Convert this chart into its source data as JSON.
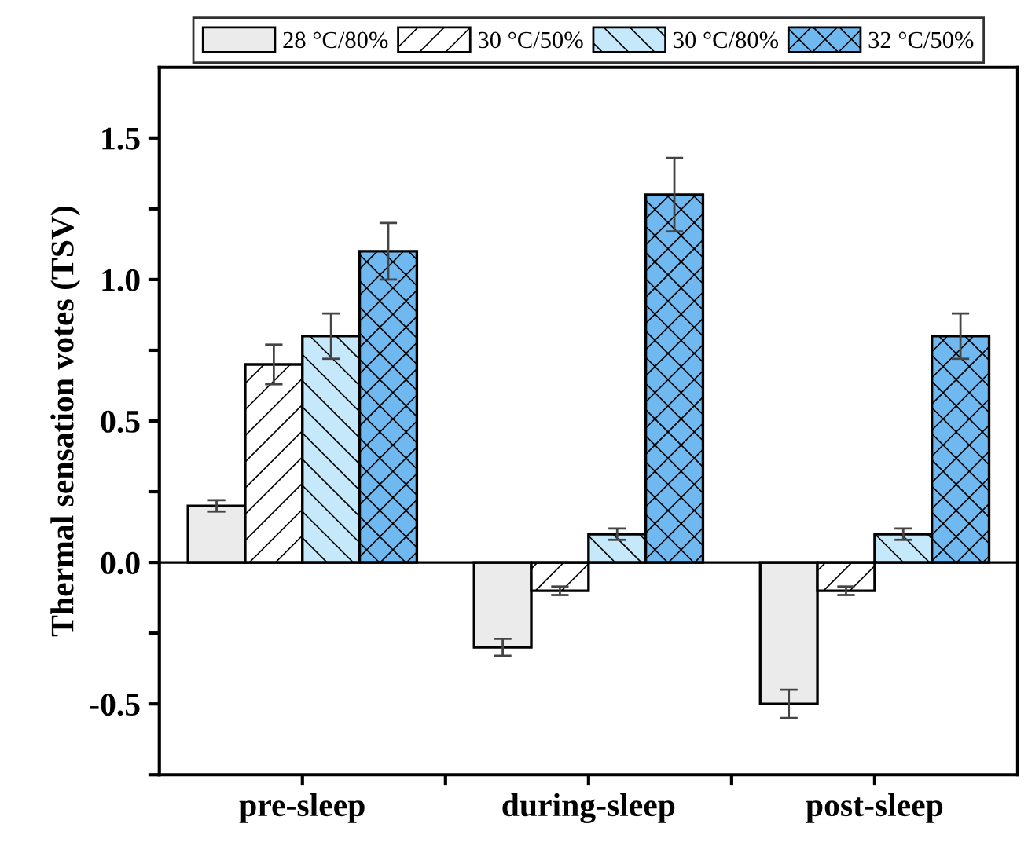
{
  "chart_data": {
    "type": "bar",
    "ylabel": "Thermal sensation votes (TSV)",
    "categories": [
      "pre-sleep",
      "during-sleep",
      "post-sleep"
    ],
    "series": [
      {
        "name": "28 °C/80%",
        "color": "#ebebeb",
        "values": [
          0.2,
          -0.3,
          -0.5
        ],
        "errors": [
          0.02,
          0.03,
          0.05
        ]
      },
      {
        "name": "30 °C/50%",
        "color": "#ffffff",
        "values": [
          0.7,
          -0.1,
          -0.1
        ],
        "errors": [
          0.07,
          0.015,
          0.015
        ]
      },
      {
        "name": "30 °C/80%",
        "color": "#c5e8fa",
        "values": [
          0.8,
          0.1,
          0.1
        ],
        "errors": [
          0.08,
          0.02,
          0.02
        ]
      },
      {
        "name": "32 °C/50%",
        "color": "#6fb8f0",
        "values": [
          1.1,
          1.3,
          0.8
        ],
        "errors": [
          0.1,
          0.13,
          0.08
        ]
      }
    ],
    "ylim": [
      -0.75,
      1.75
    ],
    "yticks": [
      {
        "value": -0.75,
        "label": null
      },
      {
        "value": -0.5,
        "label": "-0.5"
      },
      {
        "value": -0.25,
        "label": null
      },
      {
        "value": 0,
        "label": "0.0"
      },
      {
        "value": 0.25,
        "label": null
      },
      {
        "value": 0.5,
        "label": "0.5"
      },
      {
        "value": 0.75,
        "label": null
      },
      {
        "value": 1,
        "label": "1.0"
      },
      {
        "value": 1.25,
        "label": null
      },
      {
        "value": 1.5,
        "label": "1.5"
      }
    ],
    "ref_lines": [
      {
        "axis": "y",
        "value": 0,
        "color": "#000000"
      }
    ],
    "legend": "top",
    "grid": false
  }
}
